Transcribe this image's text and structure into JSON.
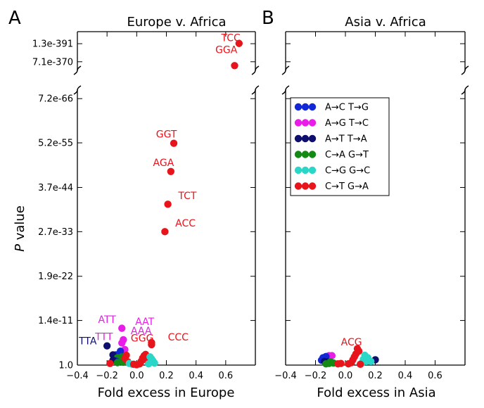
{
  "chart_data": [
    {
      "type": "scatter",
      "panel": "A",
      "title": "Europe v. Africa",
      "xlabel": "Fold excess in Europe",
      "ylabel": "P value",
      "xlim": [
        -0.4,
        0.8
      ],
      "xticks": [
        "−0.4",
        "−0.2",
        "0.0",
        "0.2",
        "0.4",
        "0.6"
      ],
      "xtick_values": [
        -0.4,
        -0.2,
        0.0,
        0.2,
        0.4,
        0.6
      ],
      "yticks_lower": [
        "7.2e-66",
        "5.2e-55",
        "3.7e-44",
        "2.7e-33",
        "1.9e-22",
        "1.4e-11",
        "1.0"
      ],
      "ytick_lower_pos": [
        65.1,
        54.3,
        43.4,
        32.6,
        21.7,
        10.9,
        0
      ],
      "ylim_lower": [
        0,
        67.2
      ],
      "yticks_upper": [
        "1.3e-391",
        "7.1e-370"
      ],
      "ytick_upper_pos": [
        391,
        370
      ],
      "ylim_upper": [
        360,
        405
      ],
      "points": [
        {
          "x": 0.69,
          "y": 391.3,
          "s": 5
        },
        {
          "x": 0.66,
          "y": 365.5,
          "s": 5
        },
        {
          "x": 0.25,
          "y": 54.2,
          "s": 5
        },
        {
          "x": 0.23,
          "y": 47.3,
          "s": 5
        },
        {
          "x": 0.21,
          "y": 39.3,
          "s": 5
        },
        {
          "x": 0.19,
          "y": 32.6,
          "s": 5
        },
        {
          "x": -0.1,
          "y": 9.0,
          "s": 1
        },
        {
          "x": -0.09,
          "y": 6.2,
          "s": 1
        },
        {
          "x": -0.1,
          "y": 5.4,
          "s": 1
        },
        {
          "x": 0.1,
          "y": 5.5,
          "s": 5
        },
        {
          "x": 0.1,
          "y": 5.0,
          "s": 5
        },
        {
          "x": -0.2,
          "y": 4.7,
          "s": 2
        },
        {
          "x": -0.08,
          "y": 3.8,
          "s": 1
        },
        {
          "x": -0.11,
          "y": 3.4,
          "s": 0
        },
        {
          "x": -0.14,
          "y": 2.5,
          "s": 0
        },
        {
          "x": -0.16,
          "y": 2.5,
          "s": 2
        },
        {
          "x": -0.15,
          "y": 1.8,
          "s": 2
        },
        {
          "x": -0.13,
          "y": 1.8,
          "s": 3
        },
        {
          "x": -0.12,
          "y": 1.4,
          "s": 3
        },
        {
          "x": -0.11,
          "y": 1.0,
          "s": 3
        },
        {
          "x": -0.09,
          "y": 0.7,
          "s": 3
        },
        {
          "x": -0.1,
          "y": 2.0,
          "s": 3
        },
        {
          "x": -0.07,
          "y": 2.4,
          "s": 5
        },
        {
          "x": -0.08,
          "y": 1.6,
          "s": 5
        },
        {
          "x": -0.06,
          "y": 0.8,
          "s": 5
        },
        {
          "x": -0.14,
          "y": 1.0,
          "s": 0
        },
        {
          "x": -0.16,
          "y": 1.2,
          "s": 2
        },
        {
          "x": -0.05,
          "y": 0.4,
          "s": 4
        },
        {
          "x": -0.03,
          "y": 0.2,
          "s": 4
        },
        {
          "x": 0.05,
          "y": 2.3,
          "s": 5
        },
        {
          "x": 0.06,
          "y": 2.6,
          "s": 5
        },
        {
          "x": 0.04,
          "y": 1.7,
          "s": 5
        },
        {
          "x": 0.07,
          "y": 1.2,
          "s": 5
        },
        {
          "x": 0.03,
          "y": 0.9,
          "s": 5
        },
        {
          "x": 0.09,
          "y": 2.0,
          "s": 4
        },
        {
          "x": 0.1,
          "y": 1.5,
          "s": 4
        },
        {
          "x": 0.11,
          "y": 1.0,
          "s": 4
        },
        {
          "x": 0.12,
          "y": 0.5,
          "s": 4
        },
        {
          "x": 0.08,
          "y": 0.3,
          "s": 4
        },
        {
          "x": 0.02,
          "y": 0.3,
          "s": 5
        },
        {
          "x": 0.0,
          "y": 0.1,
          "s": 5
        },
        {
          "x": -0.02,
          "y": 0.2,
          "s": 5
        },
        {
          "x": -0.13,
          "y": 0.6,
          "s": 3
        },
        {
          "x": -0.18,
          "y": 0.4,
          "s": 5
        }
      ],
      "annotations": [
        {
          "text": "TCC",
          "x": 0.57,
          "y": 394,
          "color": "#e8141c"
        },
        {
          "text": "GGA",
          "x": 0.53,
          "y": 380,
          "color": "#e8141c"
        },
        {
          "text": "GGT",
          "x": 0.13,
          "y": 55.6,
          "color": "#e8141c"
        },
        {
          "text": "AGA",
          "x": 0.11,
          "y": 48.6,
          "color": "#e8141c"
        },
        {
          "text": "TCT",
          "x": 0.28,
          "y": 40.6,
          "color": "#e8141c"
        },
        {
          "text": "ACC",
          "x": 0.26,
          "y": 33.9,
          "color": "#e8141c"
        },
        {
          "text": "ATT",
          "x": -0.26,
          "y": 10.3,
          "color": "#e81ee8"
        },
        {
          "text": "AAT",
          "x": -0.01,
          "y": 9.8,
          "color": "#e81ee8"
        },
        {
          "text": "AAA",
          "x": -0.04,
          "y": 7.6,
          "color": "#e81ee8"
        },
        {
          "text": "TTT",
          "x": -0.28,
          "y": 6.1,
          "color": "#e81ee8"
        },
        {
          "text": "GGG",
          "x": -0.04,
          "y": 5.8,
          "color": "#e8141c"
        },
        {
          "text": "CCC",
          "x": 0.21,
          "y": 6.0,
          "color": "#e8141c"
        },
        {
          "text": "TTA",
          "x": -0.39,
          "y": 5.1,
          "color": "#0e0e6e"
        }
      ]
    },
    {
      "type": "scatter",
      "panel": "B",
      "title": "Asia v. Africa",
      "xlabel": "Fold excess in Asia",
      "xlim": [
        -0.4,
        0.8
      ],
      "xticks": [
        "−0.4",
        "−0.2",
        "0.0",
        "0.2",
        "0.4",
        "0.6"
      ],
      "xtick_values": [
        -0.4,
        -0.2,
        0.0,
        0.2,
        0.4,
        0.6
      ],
      "ylim_lower": [
        0,
        67.2
      ],
      "ylim_upper": [
        360,
        405
      ],
      "points": [
        {
          "x": 0.08,
          "y": 4.0,
          "s": 5
        },
        {
          "x": 0.09,
          "y": 3.4,
          "s": 5
        },
        {
          "x": 0.07,
          "y": 2.7,
          "s": 5
        },
        {
          "x": 0.06,
          "y": 2.0,
          "s": 5
        },
        {
          "x": 0.05,
          "y": 1.3,
          "s": 5
        },
        {
          "x": 0.04,
          "y": 0.6,
          "s": 5
        },
        {
          "x": 0.02,
          "y": 0.3,
          "s": 5
        },
        {
          "x": -0.09,
          "y": 2.3,
          "s": 1
        },
        {
          "x": -0.11,
          "y": 2.3,
          "s": 1
        },
        {
          "x": -0.13,
          "y": 2.1,
          "s": 0
        },
        {
          "x": -0.15,
          "y": 1.8,
          "s": 0
        },
        {
          "x": -0.16,
          "y": 1.2,
          "s": 0
        },
        {
          "x": -0.14,
          "y": 0.9,
          "s": 2
        },
        {
          "x": -0.12,
          "y": 0.8,
          "s": 2
        },
        {
          "x": -0.11,
          "y": 0.4,
          "s": 3
        },
        {
          "x": -0.13,
          "y": 0.3,
          "s": 3
        },
        {
          "x": -0.1,
          "y": 0.8,
          "s": 3
        },
        {
          "x": -0.08,
          "y": 0.5,
          "s": 3
        },
        {
          "x": -0.05,
          "y": 0.3,
          "s": 5
        },
        {
          "x": -0.03,
          "y": 0.4,
          "s": 5
        },
        {
          "x": 0.13,
          "y": 2.4,
          "s": 4
        },
        {
          "x": 0.15,
          "y": 1.8,
          "s": 4
        },
        {
          "x": 0.12,
          "y": 1.4,
          "s": 4
        },
        {
          "x": 0.14,
          "y": 0.9,
          "s": 4
        },
        {
          "x": 0.11,
          "y": 0.5,
          "s": 4
        },
        {
          "x": 0.2,
          "y": 1.3,
          "s": 2
        },
        {
          "x": 0.17,
          "y": 0.9,
          "s": 4
        },
        {
          "x": 0.1,
          "y": 0.2,
          "s": 5
        }
      ],
      "annotations": [
        {
          "text": "ACG",
          "x": -0.03,
          "y": 4.8,
          "color": "#e8141c"
        }
      ]
    }
  ],
  "series": [
    {
      "name": "A→C T→G",
      "color": "#1228d6"
    },
    {
      "name": "A→G T→C",
      "color": "#e81ee8"
    },
    {
      "name": "A→T T→A",
      "color": "#0e0e6e"
    },
    {
      "name": "C→A G→T",
      "color": "#138a13"
    },
    {
      "name": "C→G G→C",
      "color": "#2ad6c8"
    },
    {
      "name": "C→T G→A",
      "color": "#e8141c"
    }
  ],
  "labels": {
    "panel_a_letter": "A",
    "panel_b_letter": "B",
    "ylabel_italic": "P",
    "ylabel_rest": " value"
  }
}
